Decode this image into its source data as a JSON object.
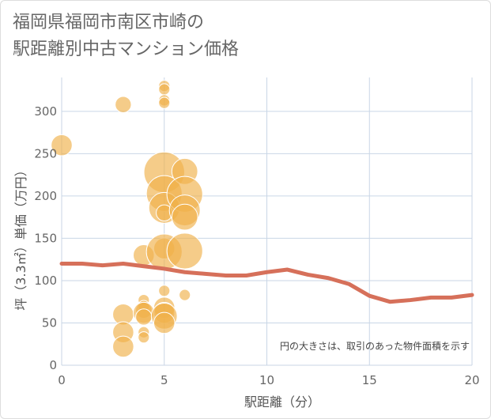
{
  "title_lines": [
    "福岡県福岡市南区市崎の",
    "駅距離別中古マンション価格"
  ],
  "chart_data": {
    "type": "scatter",
    "title": "福岡県福岡市南区市崎の駅距離別中古マンション価格",
    "xlabel": "駅距離（分）",
    "ylabel": "坪（3.3㎡）単価（万円）",
    "xlim": [
      0,
      20
    ],
    "ylim": [
      0,
      340
    ],
    "xticks": [
      0,
      5,
      10,
      15,
      20
    ],
    "yticks": [
      0,
      50,
      100,
      150,
      200,
      250,
      300
    ],
    "grid": true,
    "note": "円の大きさは、取引のあった物件面積を示す",
    "colors": {
      "bubble": "#f0b04a",
      "trend": "#d6705a",
      "grid": "#c9d6e6"
    },
    "bubbles": [
      {
        "x": 0,
        "y": 260,
        "s": 3
      },
      {
        "x": 3,
        "y": 308,
        "s": 2
      },
      {
        "x": 3,
        "y": 60,
        "s": 3
      },
      {
        "x": 3,
        "y": 39,
        "s": 3
      },
      {
        "x": 3,
        "y": 22,
        "s": 3
      },
      {
        "x": 4,
        "y": 130,
        "s": 3
      },
      {
        "x": 4,
        "y": 77,
        "s": 1
      },
      {
        "x": 4,
        "y": 70,
        "s": 1
      },
      {
        "x": 4,
        "y": 65,
        "s": 2
      },
      {
        "x": 4,
        "y": 62,
        "s": 3
      },
      {
        "x": 4,
        "y": 57,
        "s": 2
      },
      {
        "x": 4,
        "y": 39,
        "s": 1
      },
      {
        "x": 4,
        "y": 33,
        "s": 1
      },
      {
        "x": 5,
        "y": 330,
        "s": 1
      },
      {
        "x": 5,
        "y": 326,
        "s": 1
      },
      {
        "x": 5,
        "y": 313,
        "s": 1
      },
      {
        "x": 5,
        "y": 310,
        "s": 1
      },
      {
        "x": 5,
        "y": 228,
        "s": 7
      },
      {
        "x": 5,
        "y": 203,
        "s": 6
      },
      {
        "x": 5,
        "y": 186,
        "s": 5
      },
      {
        "x": 5,
        "y": 180,
        "s": 2
      },
      {
        "x": 5,
        "y": 138,
        "s": 3
      },
      {
        "x": 5,
        "y": 134,
        "s": 6
      },
      {
        "x": 5,
        "y": 88,
        "s": 1
      },
      {
        "x": 5,
        "y": 68,
        "s": 3
      },
      {
        "x": 5,
        "y": 62,
        "s": 3
      },
      {
        "x": 5,
        "y": 58,
        "s": 4
      },
      {
        "x": 5,
        "y": 50,
        "s": 3
      },
      {
        "x": 6,
        "y": 229,
        "s": 4
      },
      {
        "x": 6,
        "y": 202,
        "s": 6
      },
      {
        "x": 6,
        "y": 183,
        "s": 5
      },
      {
        "x": 6,
        "y": 175,
        "s": 4
      },
      {
        "x": 6,
        "y": 135,
        "s": 6
      },
      {
        "x": 6,
        "y": 83,
        "s": 1
      }
    ],
    "trend": {
      "x": [
        0,
        1,
        2,
        3,
        4,
        5,
        6,
        7,
        8,
        9,
        10,
        11,
        12,
        13,
        14,
        15,
        16,
        17,
        18,
        19,
        20
      ],
      "y": [
        120,
        120,
        118,
        120,
        117,
        114,
        110,
        108,
        106,
        106,
        110,
        113,
        107,
        103,
        96,
        82,
        75,
        77,
        80,
        80,
        83
      ]
    }
  }
}
